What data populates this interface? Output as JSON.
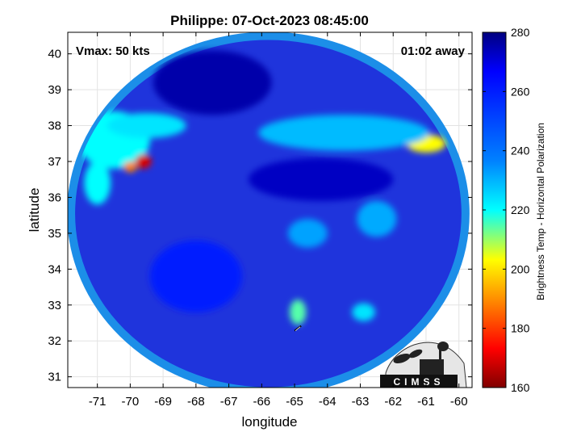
{
  "chart_data": {
    "type": "heatmap",
    "title": "Philippe: 07-Oct-2023 08:45:00",
    "xlabel": "longitude",
    "ylabel": "latitude",
    "xlim": [
      -71.9,
      -59.6
    ],
    "ylim": [
      30.7,
      40.6
    ],
    "xticks": [
      -71,
      -70,
      -69,
      -68,
      -67,
      -66,
      -65,
      -64,
      -63,
      -62,
      -61,
      -60
    ],
    "yticks": [
      31,
      32,
      33,
      34,
      35,
      36,
      37,
      38,
      39,
      40
    ],
    "annotations": {
      "top_left": "Vmax: 50 kts",
      "top_right": "01:02 away"
    },
    "storm_center": {
      "lon": -64.9,
      "lat": 32.35
    },
    "swath_disk": {
      "center_lon": -65.8,
      "center_lat": 35.55,
      "radius_lon": 6.0,
      "radius_lat": 4.95
    },
    "colorbar": {
      "label": "Brightness Temp - Horizontal Polarization",
      "range": [
        160,
        280
      ],
      "ticks": [
        160,
        180,
        200,
        220,
        240,
        260,
        280
      ],
      "colormap": "jet"
    },
    "background_tb": 258,
    "features": [
      {
        "lon": -70.5,
        "lat": 37.6,
        "rx": 1.1,
        "ry": 0.8,
        "tb": 235
      },
      {
        "lon": -69.6,
        "lat": 37.0,
        "rx": 0.25,
        "ry": 0.2,
        "tb": 170
      },
      {
        "lon": -70.0,
        "lat": 36.85,
        "rx": 0.2,
        "ry": 0.15,
        "tb": 190
      },
      {
        "lon": -71.0,
        "lat": 36.4,
        "rx": 0.4,
        "ry": 0.6,
        "tb": 235
      },
      {
        "lon": -61.0,
        "lat": 37.5,
        "rx": 0.6,
        "ry": 0.25,
        "tb": 205
      },
      {
        "lon": -63.5,
        "lat": 37.8,
        "rx": 2.6,
        "ry": 0.5,
        "tb": 243
      },
      {
        "lon": -69.5,
        "lat": 38.0,
        "rx": 1.2,
        "ry": 0.35,
        "tb": 238
      },
      {
        "lon": -64.9,
        "lat": 32.8,
        "rx": 0.25,
        "ry": 0.35,
        "tb": 225
      },
      {
        "lon": -64.6,
        "lat": 35.0,
        "rx": 0.6,
        "ry": 0.4,
        "tb": 246
      },
      {
        "lon": -67.5,
        "lat": 39.2,
        "rx": 1.8,
        "ry": 0.9,
        "tb": 275
      },
      {
        "lon": -64.2,
        "lat": 36.5,
        "rx": 2.2,
        "ry": 0.6,
        "tb": 272
      },
      {
        "lon": -62.5,
        "lat": 35.4,
        "rx": 0.6,
        "ry": 0.5,
        "tb": 245
      },
      {
        "lon": -62.9,
        "lat": 32.8,
        "rx": 0.35,
        "ry": 0.25,
        "tb": 238
      },
      {
        "lon": -68.0,
        "lat": 33.8,
        "rx": 1.4,
        "ry": 1.0,
        "tb": 262
      }
    ]
  },
  "logo": {
    "text": "CIMSS"
  }
}
